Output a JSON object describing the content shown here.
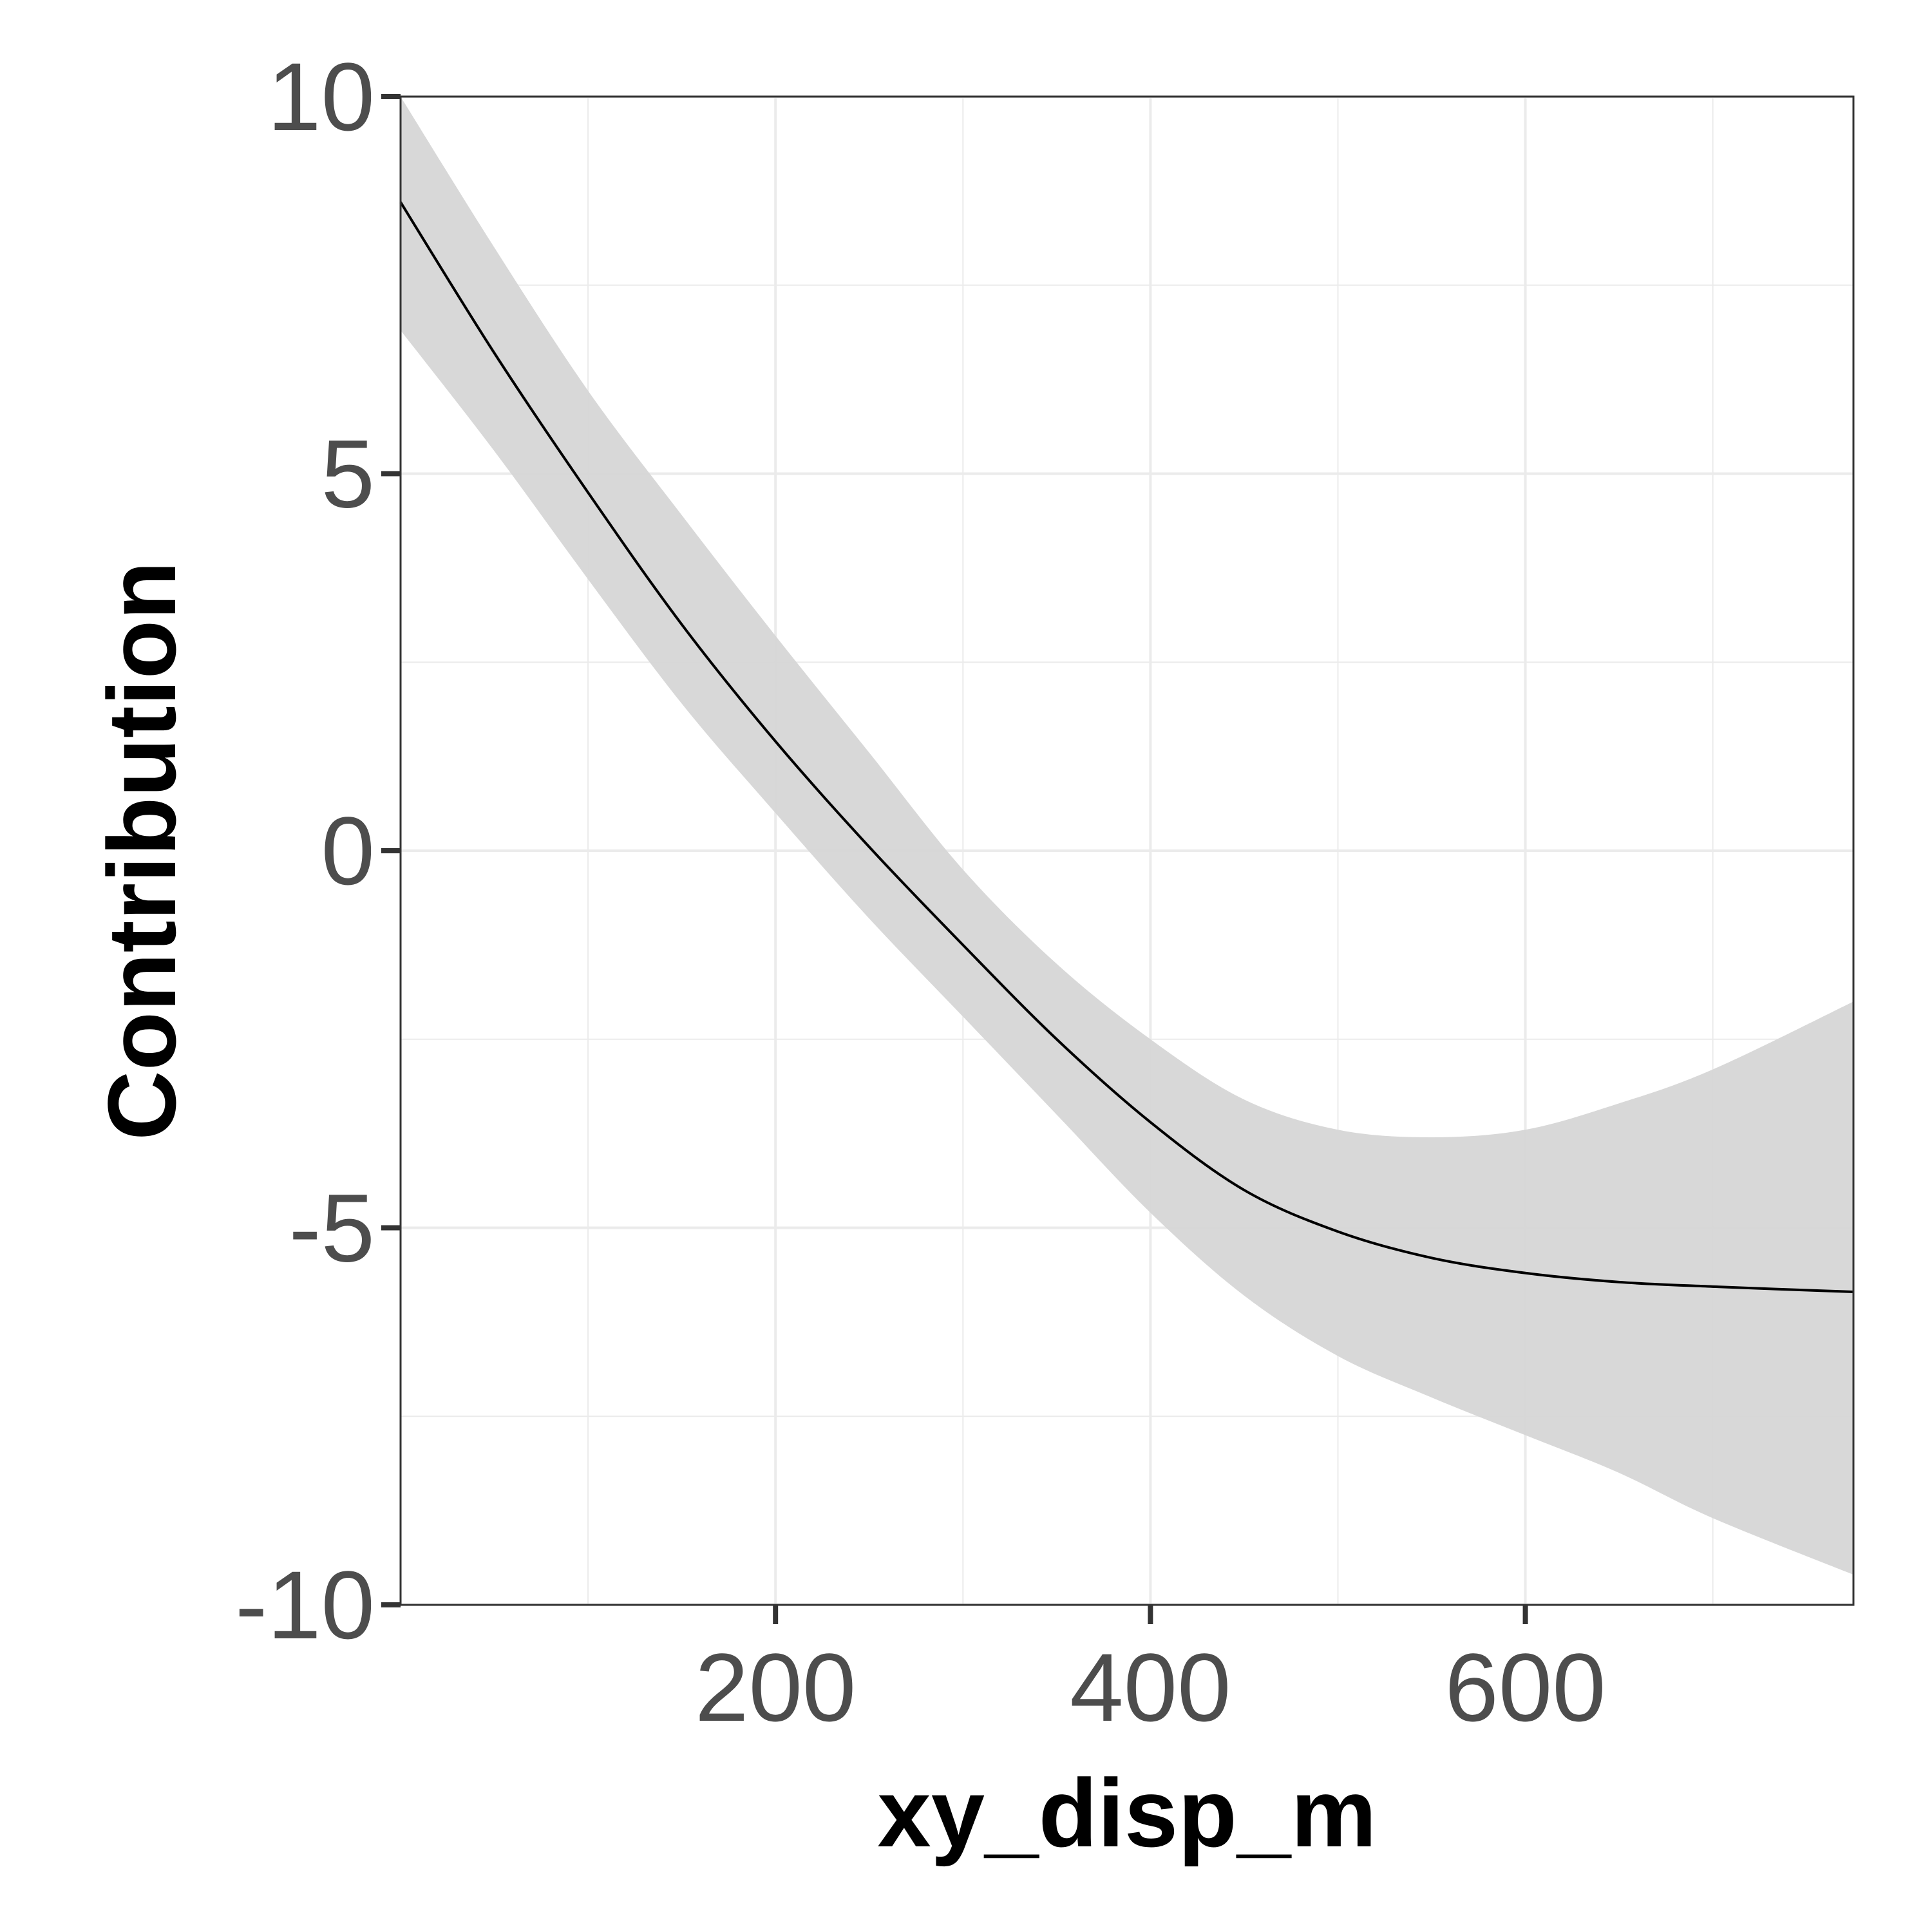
{
  "chart_data": {
    "type": "line",
    "title": "",
    "xlabel": "xy_disp_m",
    "ylabel": "Contribution",
    "xlim": [
      0,
      775
    ],
    "ylim": [
      -10,
      10
    ],
    "x_ticks": [
      200,
      400,
      600
    ],
    "x_tick_labels": [
      "200",
      "400",
      "600"
    ],
    "y_ticks": [
      -10,
      -5,
      0,
      5,
      10
    ],
    "y_tick_labels": [
      "-10",
      "-5",
      "0",
      "5",
      "10"
    ],
    "x_minor_ticks": [
      100,
      300,
      500,
      700
    ],
    "y_minor_ticks": [
      -7.5,
      -2.5,
      2.5,
      7.5
    ],
    "grid": true,
    "legend": "none",
    "colors": {
      "line": "#000000",
      "ribbon": "#d6d6d6",
      "grid": "#ebebeb",
      "panel_border": "#333333",
      "tick_label": "#4d4d4d"
    },
    "series": [
      {
        "x": [
          0,
          50,
          100,
          150,
          200,
          250,
          300,
          350,
          400,
          450,
          500,
          550,
          600,
          650,
          700,
          775
        ],
        "y": [
          8.6,
          6.6,
          4.75,
          3.0,
          1.45,
          0.05,
          -1.25,
          -2.5,
          -3.6,
          -4.5,
          -5.05,
          -5.4,
          -5.6,
          -5.72,
          -5.78,
          -5.85
        ],
        "lower": [
          6.9,
          5.3,
          3.6,
          1.95,
          0.5,
          -0.9,
          -2.2,
          -3.5,
          -4.8,
          -5.9,
          -6.7,
          -7.25,
          -7.75,
          -8.25,
          -8.85,
          -9.6
        ],
        "upper": [
          10.0,
          8.0,
          6.1,
          4.45,
          2.85,
          1.3,
          -0.25,
          -1.5,
          -2.5,
          -3.3,
          -3.7,
          -3.8,
          -3.7,
          -3.35,
          -2.9,
          -2.0
        ]
      }
    ]
  }
}
